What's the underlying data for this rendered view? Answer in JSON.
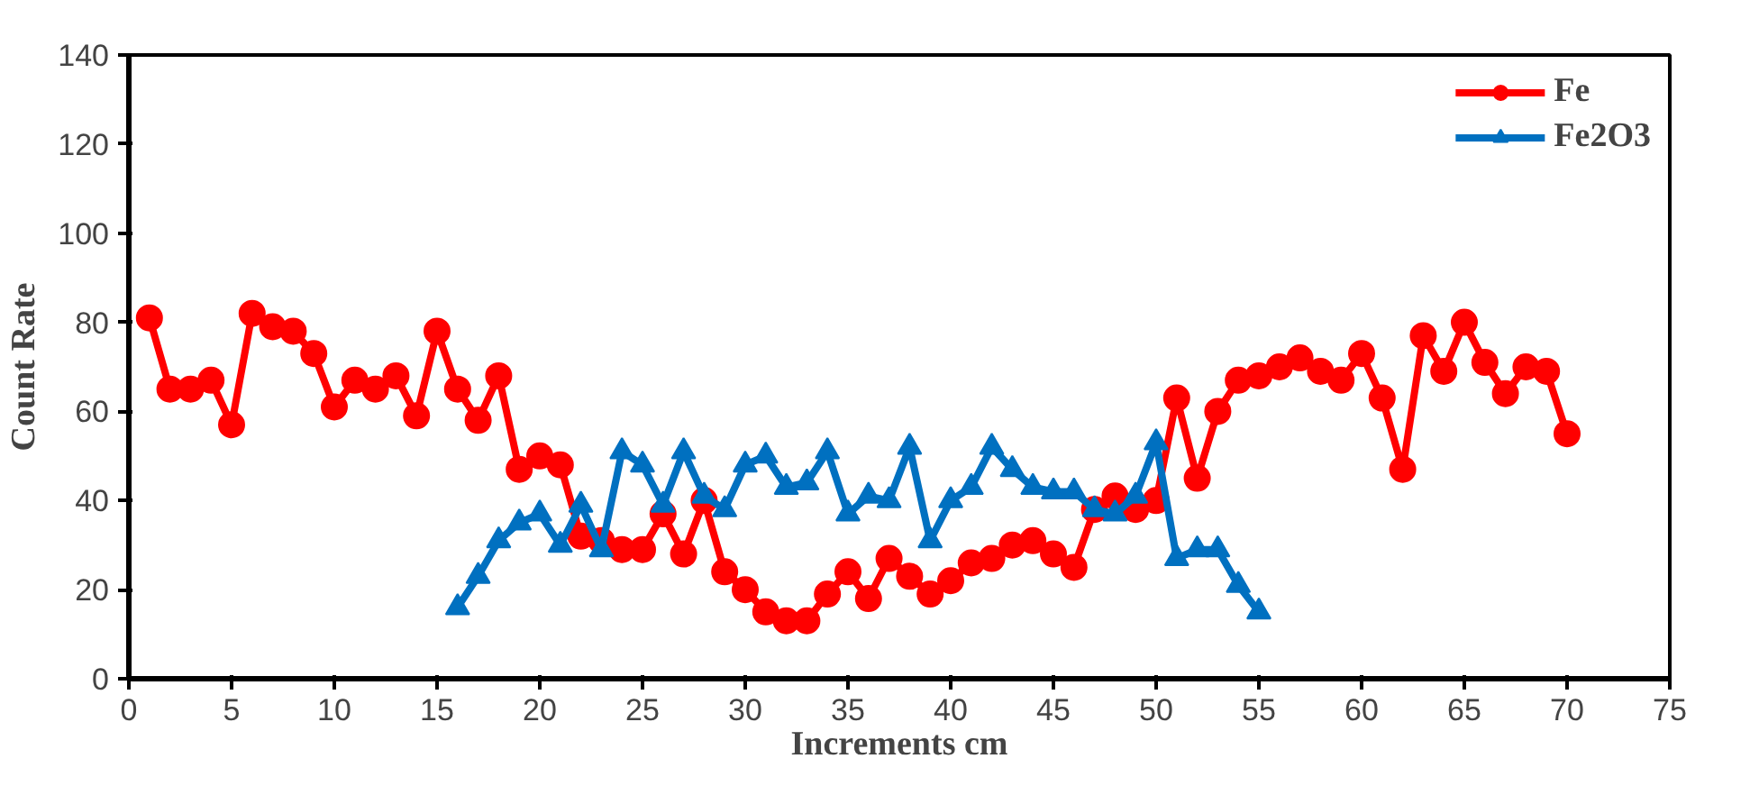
{
  "chart_data": {
    "type": "line",
    "xlabel": "Increments cm",
    "ylabel": "Count Rate",
    "xlim": [
      0,
      75
    ],
    "ylim": [
      0,
      140
    ],
    "xticks": [
      0,
      5,
      10,
      15,
      20,
      25,
      30,
      35,
      40,
      45,
      50,
      55,
      60,
      65,
      70,
      75
    ],
    "yticks": [
      0,
      20,
      40,
      60,
      80,
      100,
      120,
      140
    ],
    "grid": false,
    "legend": "top right",
    "line_style": "solid",
    "series": [
      {
        "name": "Fe",
        "color": "#ff0000",
        "marker": "circle",
        "x": [
          1,
          2,
          3,
          4,
          5,
          6,
          7,
          8,
          9,
          10,
          11,
          12,
          13,
          14,
          15,
          16,
          17,
          18,
          19,
          20,
          21,
          22,
          23,
          24,
          25,
          26,
          27,
          28,
          29,
          30,
          31,
          32,
          33,
          34,
          35,
          36,
          37,
          38,
          39,
          40,
          41,
          42,
          43,
          44,
          45,
          46,
          47,
          48,
          49,
          50,
          51,
          52,
          53,
          54,
          55,
          56,
          57,
          58,
          59,
          60,
          61,
          62,
          63,
          64,
          65,
          66,
          67,
          68,
          69,
          70
        ],
        "values": [
          81,
          65,
          65,
          67,
          57,
          82,
          79,
          78,
          73,
          61,
          67,
          65,
          68,
          59,
          78,
          65,
          58,
          68,
          47,
          50,
          48,
          32,
          31,
          29,
          29,
          37,
          28,
          40,
          24,
          20,
          15,
          13,
          13,
          19,
          24,
          18,
          27,
          23,
          19,
          22,
          26,
          27,
          30,
          31,
          28,
          25,
          38,
          41,
          38,
          40,
          63,
          45,
          60,
          67,
          68,
          70,
          72,
          69,
          67,
          73,
          63,
          47,
          77,
          69,
          80,
          71,
          64,
          70,
          69,
          55
        ]
      },
      {
        "name": "Fe2O3",
        "color": "#0070c0",
        "marker": "triangle",
        "x": [
          16,
          17,
          18,
          19,
          20,
          21,
          22,
          23,
          24,
          25,
          26,
          27,
          28,
          29,
          30,
          31,
          32,
          33,
          34,
          35,
          36,
          37,
          38,
          39,
          40,
          41,
          42,
          43,
          44,
          45,
          46,
          47,
          48,
          49,
          50,
          51,
          52,
          53,
          54,
          55
        ],
        "values": [
          16,
          23,
          31,
          35,
          37,
          30,
          39,
          29,
          51,
          48,
          39,
          51,
          41,
          38,
          48,
          50,
          43,
          44,
          51,
          37,
          41,
          40,
          52,
          31,
          40,
          43,
          52,
          47,
          43,
          42,
          42,
          38,
          37,
          41,
          53,
          27,
          29,
          29,
          21,
          15
        ]
      }
    ]
  }
}
